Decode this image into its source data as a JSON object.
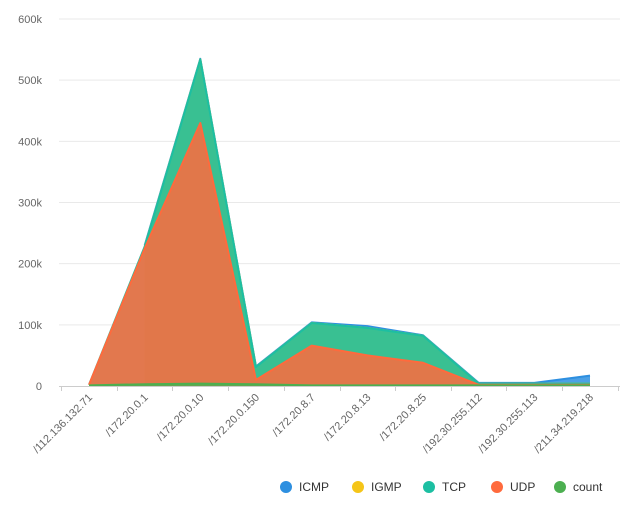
{
  "chart_data": {
    "type": "area",
    "categories": [
      "/112.136.132.71",
      "/172.20.0.1",
      "/172.20.0.10",
      "/172.20.0.150",
      "/172.20.8.7",
      "/172.20.8.13",
      "/172.20.8.25",
      "/192.30.255.112",
      "/192.30.255.113",
      "/211.34.219.218"
    ],
    "ylim": [
      0,
      600000
    ],
    "yticks": [
      0,
      100000,
      200000,
      300000,
      400000,
      500000,
      600000
    ],
    "ytick_labels": [
      "0",
      "100k",
      "200k",
      "300k",
      "400k",
      "500k",
      "600k"
    ],
    "grid": true,
    "legend_position": "bottom-right",
    "series": [
      {
        "name": "ICMP",
        "color": "#2d8fe0",
        "values": [
          null,
          230000,
          535000,
          32000,
          104000,
          98000,
          83000,
          5000,
          5000,
          17000
        ]
      },
      {
        "name": "IGMP",
        "color": "#f5c518",
        "values": [
          null,
          228000,
          534000,
          31000,
          103000,
          95000,
          82000,
          4000,
          4000,
          4000
        ]
      },
      {
        "name": "TCP",
        "color": "#1cbfa2",
        "values": [
          2000,
          228000,
          534000,
          31000,
          103000,
          95000,
          82000,
          4000,
          4000,
          4000
        ]
      },
      {
        "name": "UDP",
        "color": "#ff6a3d",
        "values": [
          2000,
          225000,
          430000,
          10000,
          66000,
          50000,
          38000,
          2000,
          2000,
          2000
        ]
      },
      {
        "name": "count",
        "color": "#4caf50",
        "values": [
          1000,
          3000,
          4000,
          3000,
          1000,
          1000,
          1000,
          1000,
          1000,
          1000
        ]
      }
    ]
  }
}
